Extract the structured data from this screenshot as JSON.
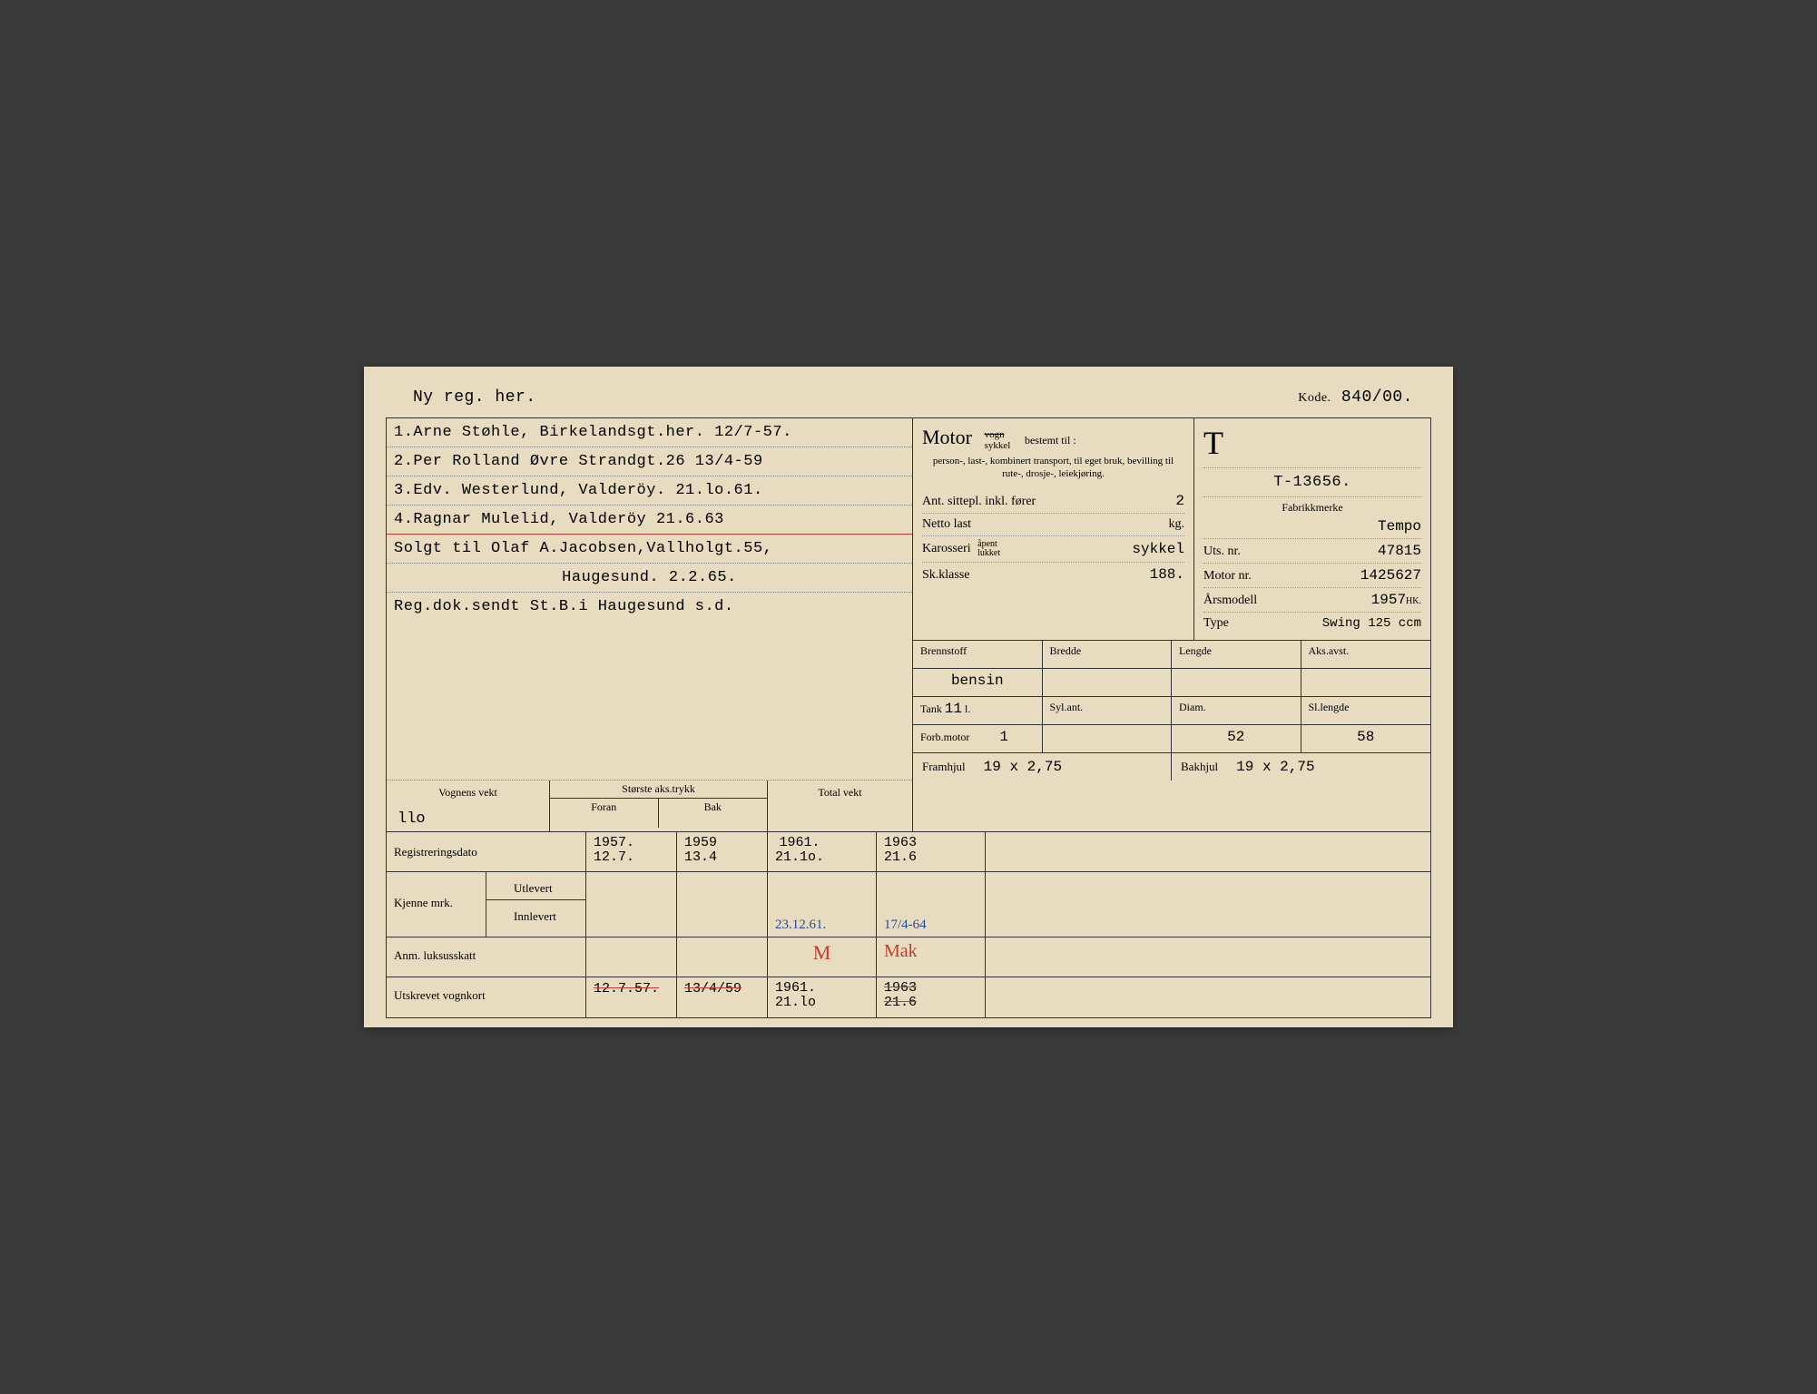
{
  "header": {
    "left": "Ny reg. her.",
    "right_label": "Kode.",
    "right_value": "840/00."
  },
  "owners": [
    {
      "n": "1.",
      "text": "Arne Støhle, Birkelandsgt.her.  12/7-57."
    },
    {
      "n": "2.",
      "text": "Per Rolland Øvre Strandgt.26 13/4-59"
    },
    {
      "n": "3.",
      "text": "Edv. Westerlund, Valderöy.   21.lo.61."
    },
    {
      "n": "4.",
      "text": "Ragnar Mulelid, Valderöy  21.6.63"
    }
  ],
  "sale_note": {
    "line1": "Solgt til Olaf A.Jacobsen,Vallholgt.55,",
    "line2": "Haugesund. 2.2.65.",
    "line3": "Reg.dok.sendt St.B.i Haugesund s.d."
  },
  "motor": {
    "title": "Motor",
    "striked": "vogn",
    "sub": "sykkel",
    "bestemt": "bestemt til :",
    "desc": "person-, last-, kombinert transport, til eget bruk, bevilling til rute-, drosje-, leiekjøring.",
    "seats_label": "Ant. sittepl. inkl. fører",
    "seats": "2",
    "netto_label": "Netto last",
    "netto_unit": "kg.",
    "kaross_label": "Karosseri",
    "kaross_opts": "åpent / lukket",
    "kaross": "sykkel",
    "skklasse_label": "Sk.klasse",
    "skklasse": "188."
  },
  "reg": {
    "T": "T",
    "number": "T-13656.",
    "fabrikk_label": "Fabrikkmerke",
    "fabrikk": "Tempo",
    "uts_label": "Uts. nr.",
    "uts": "47815",
    "motor_label": "Motor nr.",
    "motor": "1425627",
    "aar_label": "Årsmodell",
    "aar": "1957",
    "aar_unit": "HK.",
    "type_label": "Type",
    "type": "Swing 125 ccm"
  },
  "specs": {
    "headers": [
      "Brennstoff",
      "Bredde",
      "Lengde",
      "Aks.avst."
    ],
    "row1": [
      "bensin",
      "",
      "",
      ""
    ],
    "tank_label": "Tank",
    "tank": "11",
    "tank_unit": "l.",
    "syl_label": "Syl.ant.",
    "diam_label": "Diam.",
    "sl_label": "Sl.lengde",
    "forb_label": "Forb.motor",
    "row2": [
      "1",
      "",
      "52",
      "58"
    ],
    "fram_label": "Framhjul",
    "fram": "19 x 2,75",
    "bak_label": "Bakhjul",
    "bak": "19 x 2,75"
  },
  "weight": {
    "vogn_label": "Vognens vekt",
    "vogn": "llo",
    "aks_label": "Største aks.trykk",
    "foran": "Foran",
    "bak": "Bak",
    "total_label": "Total vekt"
  },
  "bottom": {
    "reg_label": "Registreringsdato",
    "reg_dates": [
      "1957.\n12.7.",
      "1959\n13.4",
      "1961.\n21.1o.",
      "1963\n21.6"
    ],
    "kjenne_label": "Kjenne mrk.",
    "utlevert": "Utlevert",
    "innlevert": "Innlevert",
    "innl_vals": [
      "",
      "",
      "23.12.61.",
      "17/4-64"
    ],
    "anm_label": "Anm. luksusskatt",
    "anm_vals": [
      "",
      "",
      "M",
      "Mak"
    ],
    "utskr_label": "Utskrevet vognkort",
    "utskr_vals": [
      "12.7.57.",
      "13/4/59",
      "1961.\n21.lo",
      "1963\n21.6"
    ]
  },
  "colors": {
    "paper": "#e8dcc0",
    "ink": "#2a2a2a",
    "blue": "#2a4a9a",
    "red": "#c23a2a",
    "border": "#333333"
  }
}
